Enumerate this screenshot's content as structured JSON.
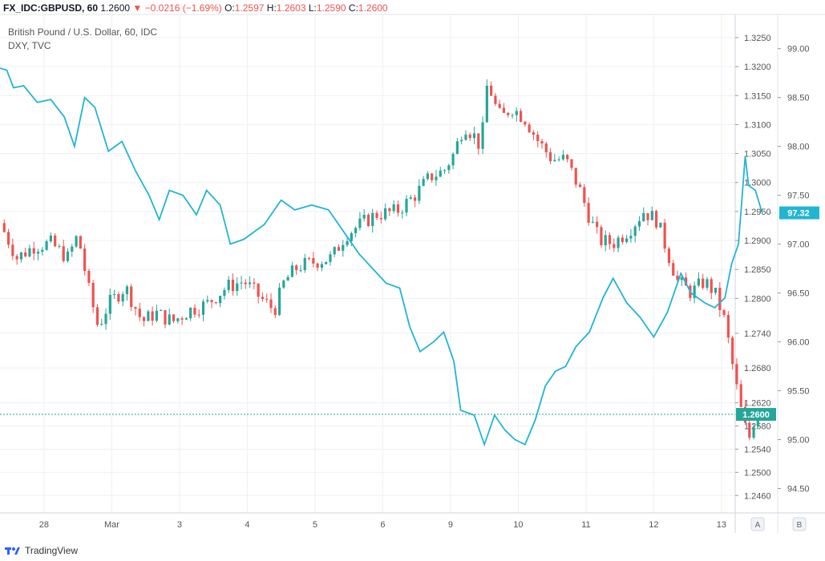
{
  "header": {
    "symbol": "FX_IDC:GBPUSD, 60",
    "last": "1.2600",
    "change": "−0.0216 (−1.69%)",
    "o_label": "O:",
    "o": "1.2597",
    "h_label": "H:",
    "h": "1.2603",
    "l_label": "L:",
    "l": "1.2590",
    "c_label": "C:",
    "c": "1.2600"
  },
  "legend": {
    "main": "British Pound / U.S. Dollar, 60, IDC",
    "overlay": "DXY, TVC"
  },
  "footer": {
    "brand": "TradingView"
  },
  "buttons": {
    "a": "A",
    "b": "B"
  },
  "colors": {
    "up": "#26a69a",
    "down": "#ef5350",
    "dxy": "#22b5d3",
    "price_tag": "#26a69a",
    "dxy_tag": "#22b5d3"
  },
  "chart_data": [
    {
      "type": "candlestick",
      "series_name": "British Pound / U.S. Dollar, 60, IDC",
      "ylim": [
        1.243,
        1.329
      ],
      "y_ticks": [
        "1.3250",
        "1.3200",
        "1.3150",
        "1.3100",
        "1.3050",
        "1.3000",
        "1.2950",
        "1.2900",
        "1.2850",
        "1.2800",
        "1.2740",
        "1.2680",
        "1.2620",
        "1.2580",
        "1.2540",
        "1.2500",
        "1.2460"
      ],
      "x_ticks": [
        "28",
        "Mar",
        "3",
        "4",
        "5",
        "6",
        "9",
        "10",
        "11",
        "12",
        "13"
      ],
      "last_value_label": "1.2600",
      "path": [
        {
          "t": 0,
          "v": 1.293
        },
        {
          "t": 0.25,
          "v": 1.287
        },
        {
          "t": 0.5,
          "v": 1.289
        },
        {
          "t": 0.75,
          "v": 1.2895
        },
        {
          "t": 1.0,
          "v": 1.287
        },
        {
          "t": 1.15,
          "v": 1.291
        },
        {
          "t": 1.3,
          "v": 1.282
        },
        {
          "t": 1.45,
          "v": 1.275
        },
        {
          "t": 1.6,
          "v": 1.279
        },
        {
          "t": 1.85,
          "v": 1.282
        },
        {
          "t": 2.1,
          "v": 1.276
        },
        {
          "t": 2.3,
          "v": 1.2775
        },
        {
          "t": 2.55,
          "v": 1.276
        },
        {
          "t": 2.8,
          "v": 1.278
        },
        {
          "t": 3.05,
          "v": 1.279
        },
        {
          "t": 3.35,
          "v": 1.282
        },
        {
          "t": 3.6,
          "v": 1.283
        },
        {
          "t": 3.85,
          "v": 1.28
        },
        {
          "t": 4.05,
          "v": 1.278
        },
        {
          "t": 4.2,
          "v": 1.283
        },
        {
          "t": 4.4,
          "v": 1.2855
        },
        {
          "t": 4.7,
          "v": 1.2865
        },
        {
          "t": 4.9,
          "v": 1.287
        },
        {
          "t": 5.1,
          "v": 1.291
        },
        {
          "t": 5.35,
          "v": 1.293
        },
        {
          "t": 5.55,
          "v": 1.2945
        },
        {
          "t": 5.85,
          "v": 1.295
        },
        {
          "t": 6.1,
          "v": 1.2975
        },
        {
          "t": 6.35,
          "v": 1.301
        },
        {
          "t": 6.55,
          "v": 1.302
        },
        {
          "t": 6.7,
          "v": 1.305
        },
        {
          "t": 6.85,
          "v": 1.31
        },
        {
          "t": 7.0,
          "v": 1.308
        },
        {
          "t": 7.1,
          "v": 1.306
        },
        {
          "t": 7.2,
          "v": 1.318
        },
        {
          "t": 7.28,
          "v": 1.314
        },
        {
          "t": 7.4,
          "v": 1.311
        },
        {
          "t": 7.55,
          "v": 1.313
        },
        {
          "t": 7.75,
          "v": 1.311
        },
        {
          "t": 7.95,
          "v": 1.307
        },
        {
          "t": 8.15,
          "v": 1.304
        },
        {
          "t": 8.35,
          "v": 1.304
        },
        {
          "t": 8.55,
          "v": 1.299
        },
        {
          "t": 8.7,
          "v": 1.294
        },
        {
          "t": 8.85,
          "v": 1.29
        },
        {
          "t": 9.05,
          "v": 1.2895
        },
        {
          "t": 9.3,
          "v": 1.292
        },
        {
          "t": 9.5,
          "v": 1.295
        },
        {
          "t": 9.7,
          "v": 1.2935
        },
        {
          "t": 9.85,
          "v": 1.288
        },
        {
          "t": 10.0,
          "v": 1.283
        },
        {
          "t": 10.2,
          "v": 1.281
        },
        {
          "t": 10.4,
          "v": 1.283
        },
        {
          "t": 10.55,
          "v": 1.281
        },
        {
          "t": 10.7,
          "v": 1.276
        },
        {
          "t": 10.85,
          "v": 1.266
        },
        {
          "t": 10.95,
          "v": 1.26
        },
        {
          "t": 11.05,
          "v": 1.2555
        },
        {
          "t": 11.15,
          "v": 1.26
        },
        {
          "t": 11.25,
          "v": 1.2605
        }
      ]
    },
    {
      "type": "line",
      "series_name": "DXY, TVC",
      "ylim": [
        94.25,
        99.35
      ],
      "y_ticks": [
        "99.00",
        "98.50",
        "98.00",
        "97.50",
        "97.00",
        "96.50",
        "96.00",
        "95.50",
        "95.00",
        "94.50"
      ],
      "last_value_label": "97.32",
      "points": [
        {
          "t": 0,
          "v": 98.8
        },
        {
          "t": 0.1,
          "v": 98.78
        },
        {
          "t": 0.2,
          "v": 98.6
        },
        {
          "t": 0.35,
          "v": 98.62
        },
        {
          "t": 0.55,
          "v": 98.45
        },
        {
          "t": 0.75,
          "v": 98.48
        },
        {
          "t": 0.95,
          "v": 98.3
        },
        {
          "t": 1.1,
          "v": 98.0
        },
        {
          "t": 1.25,
          "v": 98.5
        },
        {
          "t": 1.4,
          "v": 98.4
        },
        {
          "t": 1.6,
          "v": 97.95
        },
        {
          "t": 1.8,
          "v": 98.05
        },
        {
          "t": 2.0,
          "v": 97.75
        },
        {
          "t": 2.2,
          "v": 97.5
        },
        {
          "t": 2.35,
          "v": 97.25
        },
        {
          "t": 2.5,
          "v": 97.55
        },
        {
          "t": 2.7,
          "v": 97.5
        },
        {
          "t": 2.9,
          "v": 97.3
        },
        {
          "t": 3.05,
          "v": 97.55
        },
        {
          "t": 3.25,
          "v": 97.4
        },
        {
          "t": 3.4,
          "v": 97.0
        },
        {
          "t": 3.6,
          "v": 97.05
        },
        {
          "t": 3.9,
          "v": 97.2
        },
        {
          "t": 4.15,
          "v": 97.45
        },
        {
          "t": 4.35,
          "v": 97.35
        },
        {
          "t": 4.6,
          "v": 97.4
        },
        {
          "t": 4.85,
          "v": 97.35
        },
        {
          "t": 5.05,
          "v": 97.15
        },
        {
          "t": 5.3,
          "v": 96.9
        },
        {
          "t": 5.5,
          "v": 96.75
        },
        {
          "t": 5.7,
          "v": 96.6
        },
        {
          "t": 5.9,
          "v": 96.55
        },
        {
          "t": 6.05,
          "v": 96.15
        },
        {
          "t": 6.2,
          "v": 95.9
        },
        {
          "t": 6.4,
          "v": 96.0
        },
        {
          "t": 6.55,
          "v": 96.1
        },
        {
          "t": 6.7,
          "v": 95.8
        },
        {
          "t": 6.8,
          "v": 95.3
        },
        {
          "t": 7.0,
          "v": 95.25
        },
        {
          "t": 7.15,
          "v": 94.95
        },
        {
          "t": 7.3,
          "v": 95.25
        },
        {
          "t": 7.45,
          "v": 95.1
        },
        {
          "t": 7.6,
          "v": 95.0
        },
        {
          "t": 7.75,
          "v": 94.95
        },
        {
          "t": 7.9,
          "v": 95.2
        },
        {
          "t": 8.05,
          "v": 95.55
        },
        {
          "t": 8.2,
          "v": 95.7
        },
        {
          "t": 8.35,
          "v": 95.75
        },
        {
          "t": 8.5,
          "v": 95.95
        },
        {
          "t": 8.7,
          "v": 96.1
        },
        {
          "t": 8.9,
          "v": 96.45
        },
        {
          "t": 9.05,
          "v": 96.65
        },
        {
          "t": 9.25,
          "v": 96.4
        },
        {
          "t": 9.45,
          "v": 96.25
        },
        {
          "t": 9.65,
          "v": 96.05
        },
        {
          "t": 9.85,
          "v": 96.3
        },
        {
          "t": 10.05,
          "v": 96.7
        },
        {
          "t": 10.2,
          "v": 96.5
        },
        {
          "t": 10.4,
          "v": 96.4
        },
        {
          "t": 10.55,
          "v": 96.35
        },
        {
          "t": 10.7,
          "v": 96.45
        },
        {
          "t": 10.8,
          "v": 96.8
        },
        {
          "t": 10.9,
          "v": 97.0
        },
        {
          "t": 11.0,
          "v": 97.9
        },
        {
          "t": 11.05,
          "v": 97.6
        },
        {
          "t": 11.15,
          "v": 97.55
        },
        {
          "t": 11.25,
          "v": 97.32
        }
      ]
    }
  ]
}
